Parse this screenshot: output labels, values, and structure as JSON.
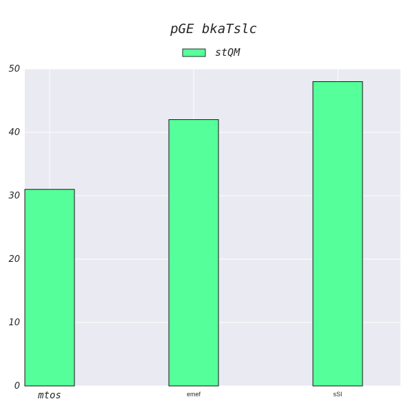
{
  "chart_data": {
    "type": "bar",
    "title": "pGE bkaTslc",
    "xlabel": "",
    "ylabel": "",
    "categories": [
      "mtos",
      "emef",
      "sSI"
    ],
    "series": [
      {
        "name": "stQM",
        "values": [
          31,
          42,
          48
        ]
      }
    ],
    "ylim": [
      0,
      50
    ],
    "yticks": [
      "0",
      "10",
      "20",
      "30",
      "40",
      "50"
    ],
    "grid": true,
    "legend_position": "top-center",
    "colors": {
      "bar": "#55ff99",
      "bar_edge": "#000000",
      "plot_background": "#eaeaf2",
      "grid": "#ffffff"
    }
  }
}
